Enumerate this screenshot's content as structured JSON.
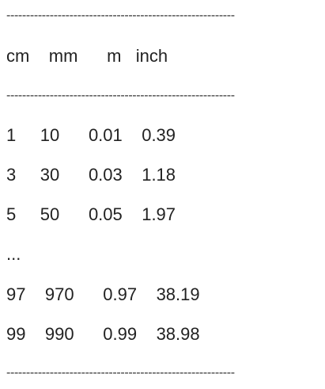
{
  "rules": {
    "top": "----------------------------------------------------------",
    "middle": "----------------------------------------------------------",
    "bottom": "----------------------------------------------------------"
  },
  "header": "cm    mm      m   inch",
  "rows": [
    "1     10      0.01    0.39",
    "3     30      0.03    1.18",
    "5     50      0.05    1.97",
    "...",
    "97    970      0.97    38.19",
    "99    990      0.99    38.98"
  ]
}
